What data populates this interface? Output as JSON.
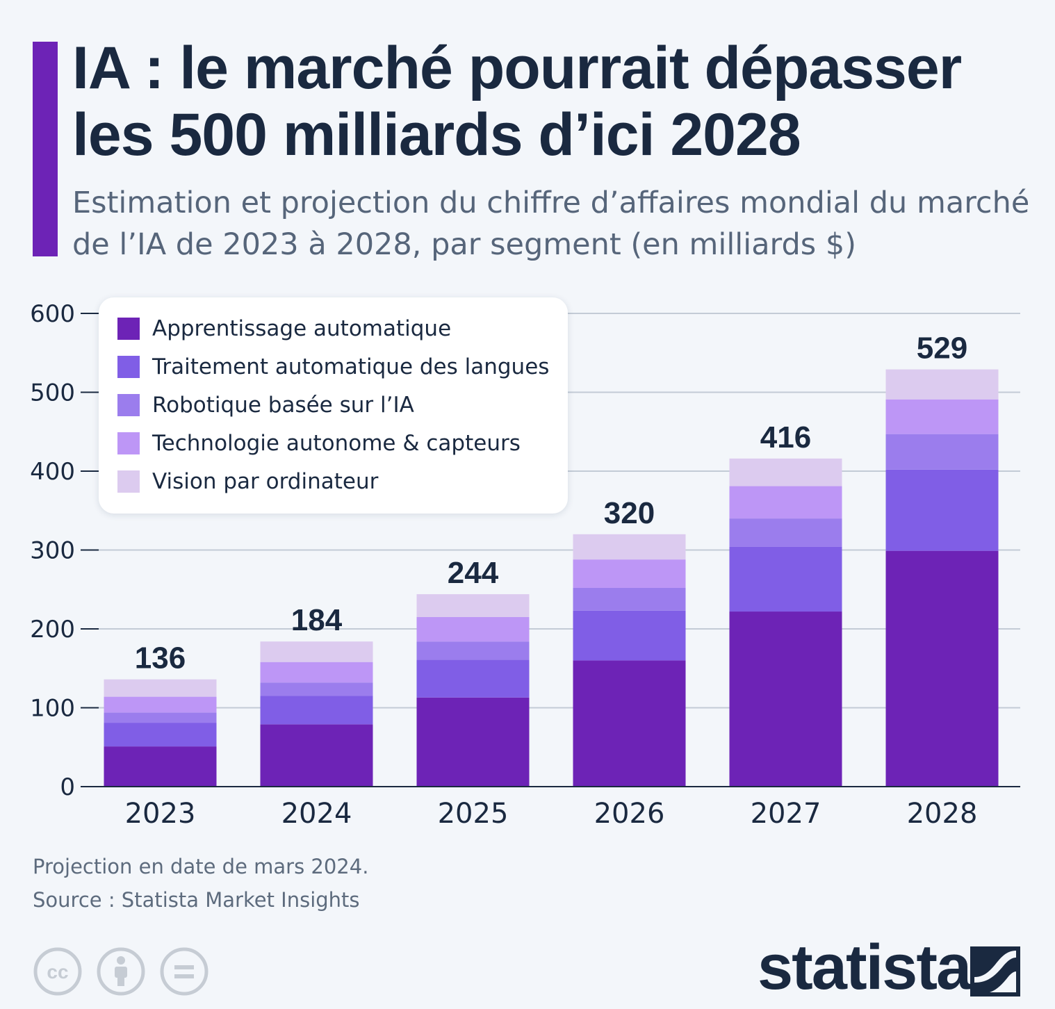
{
  "header": {
    "title": "IA : le marché pourrait dépasser les 500 milliards d’ici 2028",
    "subtitle": "Estimation et projection du chiffre d’affaires mondial du marché de l’IA de 2023 à 2028, par segment (en milliards $)"
  },
  "chart_data": {
    "type": "bar",
    "stacked": true,
    "categories": [
      "2023",
      "2024",
      "2025",
      "2026",
      "2027",
      "2028"
    ],
    "series": [
      {
        "name": "Apprentissage automatique",
        "color": "#6d23b6",
        "values": [
          51,
          79,
          113,
          160,
          222,
          299
        ]
      },
      {
        "name": "Traitement automatique des langues",
        "color": "#805ee6",
        "values": [
          30,
          36,
          48,
          63,
          82,
          103
        ]
      },
      {
        "name": "Robotique basée sur l’IA",
        "color": "#9b7ded",
        "values": [
          13,
          17,
          23,
          29,
          36,
          45
        ]
      },
      {
        "name": "Technologie autonome & capteurs",
        "color": "#bd96f6",
        "values": [
          20,
          26,
          31,
          36,
          41,
          44
        ]
      },
      {
        "name": "Vision par ordinateur",
        "color": "#dccbef",
        "values": [
          22,
          26,
          29,
          32,
          35,
          38
        ]
      }
    ],
    "totals": [
      136,
      184,
      244,
      320,
      416,
      529
    ],
    "yticks": [
      0,
      100,
      200,
      300,
      400,
      500,
      600
    ],
    "ylim": [
      0,
      600
    ],
    "grid": true,
    "legend_position": "top-left"
  },
  "footer": {
    "note": "Projection en date de mars 2024.",
    "source": "Source : Statista Market Insights",
    "brand": "statista"
  },
  "icons": {
    "license": [
      "cc-icon",
      "attribution-icon",
      "no-derivatives-icon"
    ],
    "brand": "statista-logo-icon"
  }
}
